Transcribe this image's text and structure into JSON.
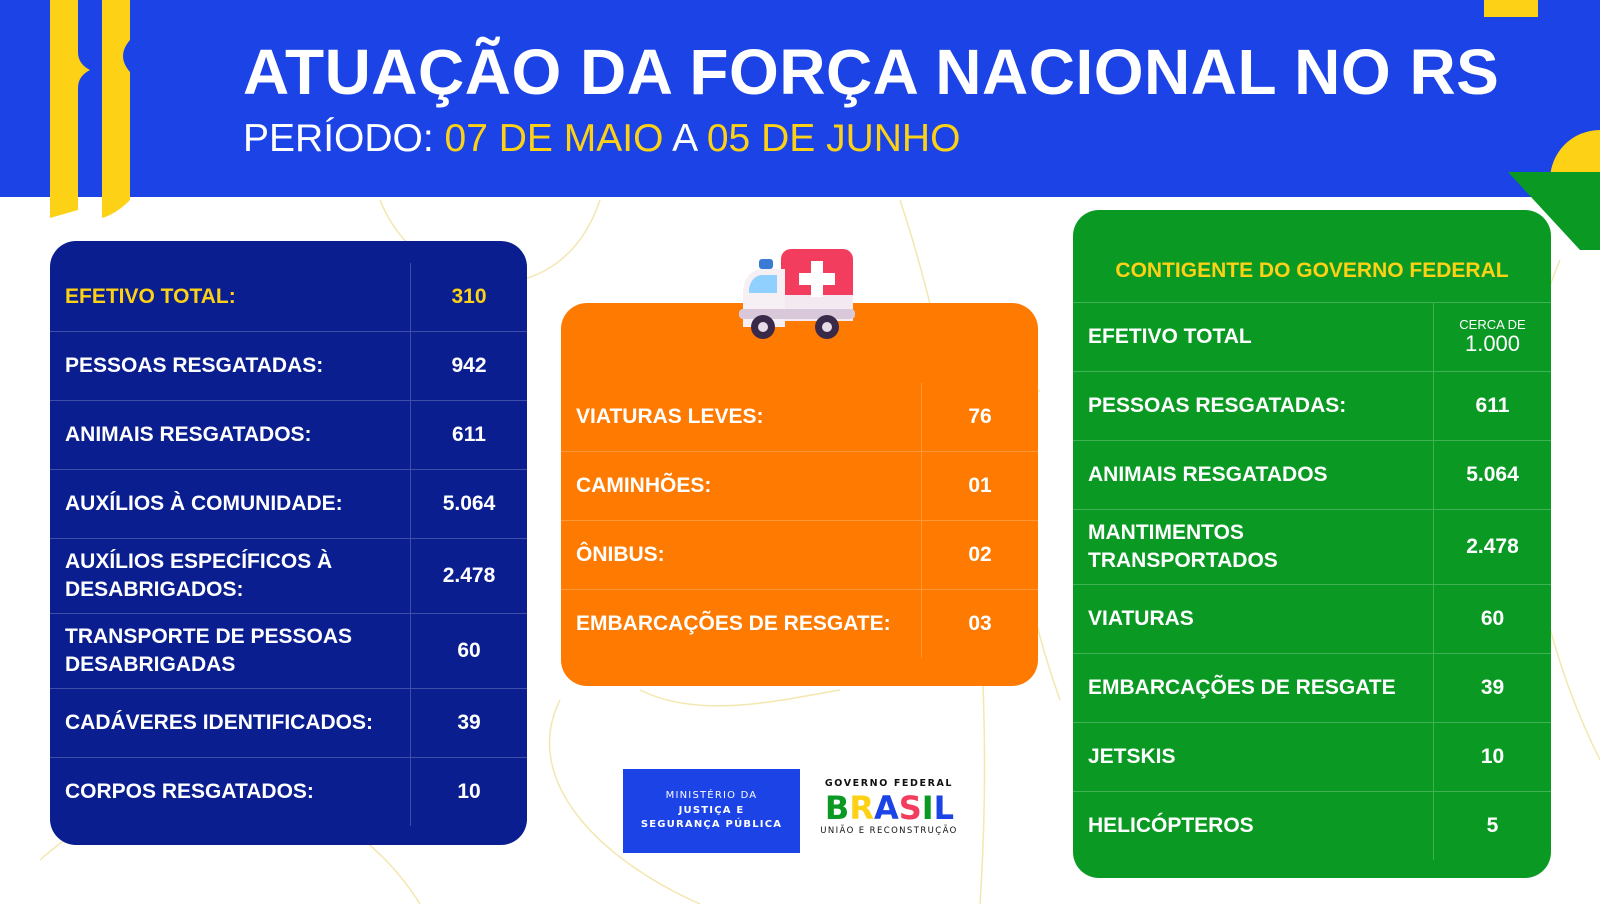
{
  "header": {
    "title": "ATUAÇÃO DA FORÇA NACIONAL NO RS",
    "period_label": "PERÍODO:",
    "start_date": "07 DE MAIO",
    "connector": "A",
    "end_date": "05 DE JUNHO"
  },
  "left_panel": {
    "rows": [
      {
        "label": "EFETIVO TOTAL:",
        "value": "310"
      },
      {
        "label": "PESSOAS RESGATADAS:",
        "value": "942"
      },
      {
        "label": "ANIMAIS RESGATADOS:",
        "value": "611"
      },
      {
        "label": "AUXÍLIOS À COMUNIDADE:",
        "value": "5.064"
      },
      {
        "label": "AUXÍLIOS ESPECÍFICOS À DESABRIGADOS:",
        "value": "2.478"
      },
      {
        "label": "TRANSPORTE DE PESSOAS DESABRIGADAS",
        "value": "60"
      },
      {
        "label": "CADÁVERES IDENTIFICADOS:",
        "value": "39"
      },
      {
        "label": "CORPOS RESGATADOS:",
        "value": "10"
      }
    ]
  },
  "middle_panel": {
    "icon": "ambulance-icon",
    "rows": [
      {
        "label": "VIATURAS LEVES:",
        "value": "76"
      },
      {
        "label": "CAMINHÕES:",
        "value": "01"
      },
      {
        "label": "ÔNIBUS:",
        "value": "02"
      },
      {
        "label": "EMBARCAÇÕES DE RESGATE:",
        "value": "03"
      }
    ]
  },
  "right_panel": {
    "heading": "CONTIGENTE DO GOVERNO FEDERAL",
    "first_row": {
      "label": "EFETIVO TOTAL",
      "value_prefix": "CERCA DE",
      "value": "1.000"
    },
    "rows": [
      {
        "label": "PESSOAS RESGATADAS:",
        "value": "611"
      },
      {
        "label": "ANIMAIS RESGATADOS",
        "value": "5.064"
      },
      {
        "label": "MANTIMENTOS TRANSPORTADOS",
        "value": "2.478"
      },
      {
        "label": "VIATURAS",
        "value": "60"
      },
      {
        "label": "EMBARCAÇÕES DE RESGATE",
        "value": "39"
      },
      {
        "label": "JETSKIS",
        "value": "10"
      },
      {
        "label": "HELICÓPTEROS",
        "value": "5"
      }
    ]
  },
  "logos": {
    "ministry_line1": "MINISTÉRIO DA",
    "ministry_line2": "JUSTIÇA E",
    "ministry_line3": "SEGURANÇA PÚBLICA",
    "gov_top": "GOVERNO FEDERAL",
    "gov_word": [
      "B",
      "R",
      "A",
      "S",
      "I",
      "L"
    ],
    "gov_bottom": "UNIÃO E RECONSTRUÇÃO"
  },
  "colors": {
    "header_blue": "#1b43e6",
    "navy_panel": "#0a1e8f",
    "orange_panel": "#ff7a00",
    "green_panel": "#0a9a24",
    "highlight_yellow": "#fcd116"
  }
}
